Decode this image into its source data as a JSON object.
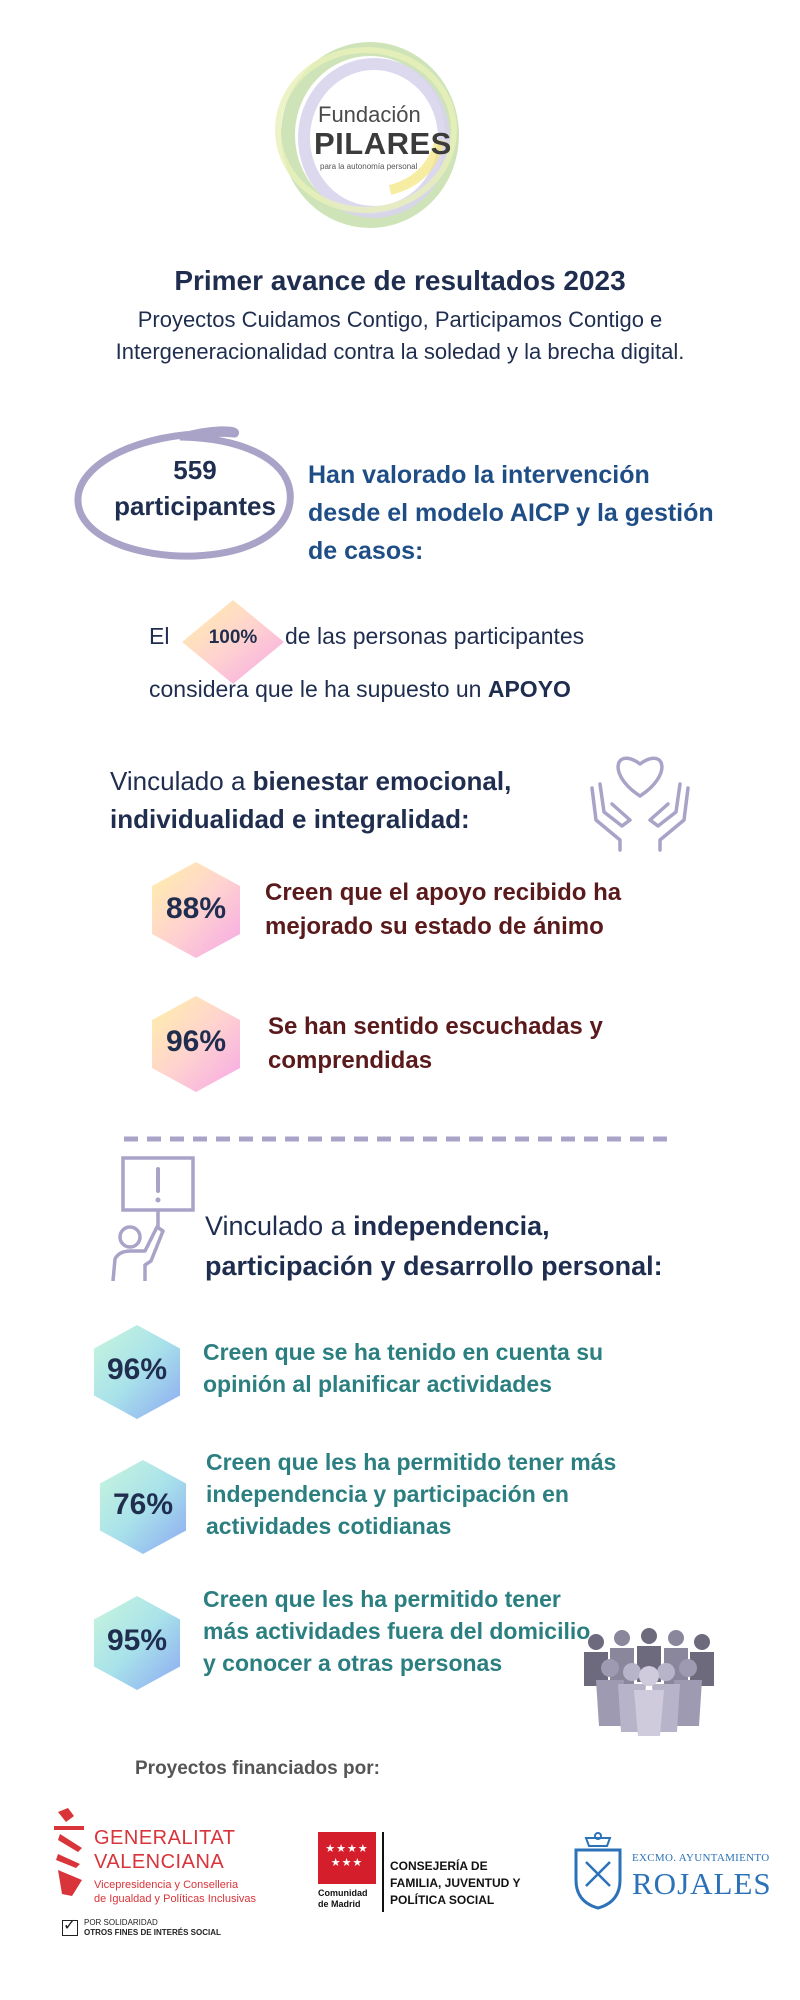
{
  "logo": {
    "line1": "Fundación",
    "line2": "PILARES",
    "line3": "para la autonomía personal"
  },
  "header": {
    "title": "Primer avance de resultados 2023",
    "subtitle": "Proyectos Cuidamos Contigo, Participamos Contigo e Intergeneracionalidad contra la soledad y la brecha digital."
  },
  "participants": {
    "count_line1": "559",
    "count_line2": "participantes",
    "description": "Han valorado la intervención desde el modelo AICP y la gestión de casos:"
  },
  "support": {
    "prefix": "El",
    "percent": "100%",
    "line1_rest": "de las personas participantes",
    "line2_prefix": "considera que le ha supuesto un",
    "line2_bold": "APOYO"
  },
  "section1": {
    "heading_prefix": "Vinculado a",
    "heading_bold": "bienestar emocional, individualidad e integralidad:",
    "icon": "heart-hands-icon",
    "stats": [
      {
        "percent": "88%",
        "text": "Creen que el apoyo recibido ha mejorado su estado de ánimo"
      },
      {
        "percent": "96%",
        "text": "Se han sentido escuchadas y comprendidas"
      }
    ]
  },
  "section2": {
    "heading_prefix": "Vinculado a",
    "heading_bold_line1": "independencia,",
    "heading_bold_line2": "participación y desarrollo personal:",
    "icon": "person-sign-icon",
    "stats": [
      {
        "percent": "96%",
        "text": "Creen que se ha tenido en cuenta su opinión al planificar actividades"
      },
      {
        "percent": "76%",
        "text": "Creen que les ha permitido tener más independencia y participación en actividades cotidianas"
      },
      {
        "percent": "95%",
        "text": "Creen que les ha permitido tener más actividades fuera del domicilio y conocer a otras personas"
      }
    ]
  },
  "footer": {
    "financed_label": "Proyectos financiados por:",
    "gv": {
      "line1": "GENERALITAT",
      "line2": "VALENCIANA",
      "line3": "Vicepresidencia y Conselleria",
      "line4": "de Igualdad y Políticas Inclusivas",
      "tick_line1": "POR SOLIDARIDAD",
      "tick_line2": "OTROS FINES DE INTERÉS SOCIAL"
    },
    "madrid": {
      "line1": "Comunidad",
      "line2": "de Madrid",
      "dept1": "CONSEJERÍA DE",
      "dept2": "FAMILIA, JUVENTUD Y",
      "dept3": "POLÍTICA SOCIAL"
    },
    "rojales": {
      "line1": "EXCMO. AYUNTAMIENTO",
      "line2": "ROJALES"
    }
  },
  "colors": {
    "navy": "#1f2d4f",
    "blue": "#1f4e86",
    "maroon": "#5a1a1c",
    "teal": "#2b7f80",
    "lavender": "#a9a3c8"
  }
}
